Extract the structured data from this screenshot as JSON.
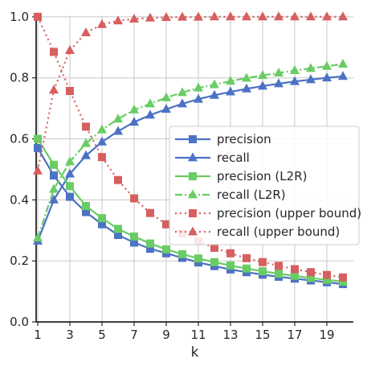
{
  "chart_data": {
    "type": "line",
    "xlabel": "k",
    "ylabel": "",
    "title": "",
    "xlim": [
      1,
      20
    ],
    "ylim": [
      0.0,
      1.0
    ],
    "xticks": [
      1,
      3,
      5,
      7,
      9,
      11,
      13,
      15,
      17,
      19
    ],
    "yticks": [
      0.0,
      0.2,
      0.4,
      0.6,
      0.8,
      1.0
    ],
    "ytick_labels": [
      "0.0",
      "0.2",
      "0.4",
      "0.6",
      "0.8",
      "1.0"
    ],
    "grid": true,
    "legend_position": "center-right",
    "x": [
      1,
      2,
      3,
      4,
      5,
      6,
      7,
      8,
      9,
      10,
      11,
      12,
      13,
      14,
      15,
      16,
      17,
      18,
      19,
      20
    ],
    "series": [
      {
        "name": "precision",
        "color": "#4c72c4",
        "linestyle": "solid",
        "marker": "square",
        "values": [
          0.57,
          0.48,
          0.41,
          0.36,
          0.32,
          0.285,
          0.26,
          0.24,
          0.225,
          0.21,
          0.195,
          0.183,
          0.172,
          0.163,
          0.155,
          0.148,
          0.142,
          0.136,
          0.13,
          0.124
        ]
      },
      {
        "name": "recall",
        "color": "#4c72c4",
        "linestyle": "solid",
        "marker": "triangle",
        "values": [
          0.265,
          0.4,
          0.485,
          0.545,
          0.59,
          0.625,
          0.655,
          0.678,
          0.697,
          0.715,
          0.73,
          0.743,
          0.754,
          0.764,
          0.773,
          0.781,
          0.788,
          0.794,
          0.8,
          0.805
        ]
      },
      {
        "name": "precision (L2R)",
        "color": "#6acc64",
        "linestyle": "solid",
        "marker": "square",
        "values": [
          0.6,
          0.515,
          0.445,
          0.38,
          0.34,
          0.305,
          0.28,
          0.257,
          0.238,
          0.222,
          0.208,
          0.196,
          0.185,
          0.175,
          0.166,
          0.158,
          0.151,
          0.144,
          0.138,
          0.132
        ]
      },
      {
        "name": "recall (L2R)",
        "color": "#6acc64",
        "linestyle": "dashdot",
        "marker": "triangle",
        "values": [
          0.275,
          0.435,
          0.525,
          0.585,
          0.63,
          0.665,
          0.695,
          0.715,
          0.735,
          0.752,
          0.767,
          0.778,
          0.789,
          0.799,
          0.808,
          0.816,
          0.824,
          0.831,
          0.838,
          0.845
        ]
      },
      {
        "name": "precision (upper bound)",
        "color": "#d65f5f",
        "linestyle": "dotted",
        "marker": "square",
        "values": [
          1.0,
          0.885,
          0.757,
          0.64,
          0.54,
          0.465,
          0.405,
          0.357,
          0.32,
          0.29,
          0.265,
          0.243,
          0.225,
          0.209,
          0.196,
          0.184,
          0.173,
          0.163,
          0.154,
          0.146
        ]
      },
      {
        "name": "recall (upper bound)",
        "color": "#d65f5f",
        "linestyle": "dotted",
        "marker": "triangle",
        "values": [
          0.495,
          0.76,
          0.89,
          0.948,
          0.975,
          0.987,
          0.993,
          0.996,
          0.998,
          0.999,
          0.999,
          1.0,
          1.0,
          1.0,
          1.0,
          1.0,
          1.0,
          1.0,
          1.0,
          1.0
        ]
      }
    ]
  }
}
